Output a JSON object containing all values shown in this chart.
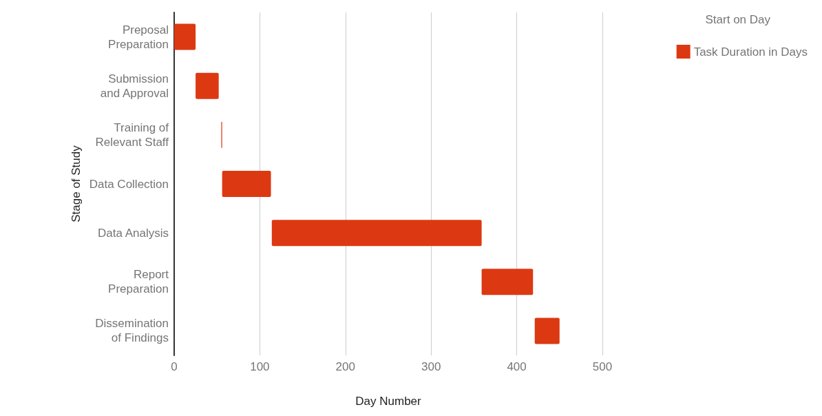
{
  "chart_data": {
    "type": "bar",
    "orientation": "horizontal",
    "categories": [
      "Preposal\nPreparation",
      "Submission\nand Approval",
      "Training of\nRelevant Staff",
      "Data Collection",
      "Data Analysis",
      "Report\nPreparation",
      "Dissemination\nof Findings"
    ],
    "series": [
      {
        "name": "Task Duration in Days",
        "color": "#dc3912",
        "values": [
          25,
          27,
          1,
          57,
          245,
          60,
          29
        ],
        "base": [
          0,
          25,
          55,
          56,
          114,
          359,
          421
        ]
      }
    ],
    "xlabel": "Day Number",
    "ylabel": "Stage of Study",
    "legend_title": "Start on Day",
    "xlim": [
      0,
      500
    ],
    "xticks": [
      0,
      100,
      200,
      300,
      400,
      500
    ],
    "grid": "x",
    "legend": "top right"
  }
}
